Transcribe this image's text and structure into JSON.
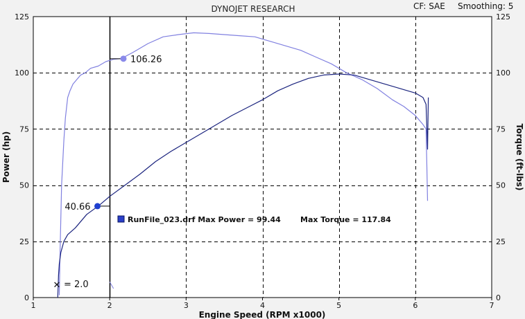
{
  "header": {
    "title": "DYNOJET RESEARCH",
    "correction_label": "CF: SAE",
    "smoothing_label": "Smoothing: 5"
  },
  "chart_data": {
    "type": "line",
    "xlabel": "Engine Speed (RPM x1000)",
    "ylabel": "Power (hp)",
    "y2label": "Torque (ft-lbs)",
    "xlim": [
      1,
      7
    ],
    "ylim": [
      0,
      125
    ],
    "y2lim": [
      0,
      125
    ],
    "xticks": [
      "1",
      "2",
      "3",
      "4",
      "5",
      "6",
      "7"
    ],
    "yticks": [
      "0",
      "25",
      "50",
      "75",
      "100",
      "125"
    ],
    "y2ticks": [
      "0",
      "25",
      "50",
      "75",
      "100",
      "125"
    ],
    "grid": true,
    "cursor_x": 2.0,
    "series": [
      {
        "key": "torque",
        "axis": "right",
        "color": "#8080e0",
        "x": [
          1.34,
          1.35,
          1.37,
          1.4,
          1.42,
          1.45,
          1.48,
          1.52,
          1.57,
          1.62,
          1.68,
          1.75,
          1.85,
          1.95,
          2.05,
          2.15,
          2.3,
          2.5,
          2.7,
          2.9,
          3.1,
          3.3,
          3.5,
          3.7,
          3.9,
          4.1,
          4.3,
          4.5,
          4.7,
          4.9,
          5.1,
          5.3,
          5.5,
          5.7,
          5.85,
          6.0,
          6.1,
          6.14,
          6.15,
          6.16
        ],
        "values": [
          1,
          20,
          50,
          70,
          80,
          89,
          92,
          95,
          97,
          99,
          100,
          102,
          103,
          105,
          106,
          106.3,
          109,
          113,
          116,
          117,
          117.8,
          117.5,
          117,
          116.5,
          116,
          114,
          112,
          110,
          107,
          104,
          100,
          97,
          93,
          88,
          85,
          81,
          77,
          75,
          60,
          43
        ]
      },
      {
        "key": "power",
        "axis": "left",
        "color": "#1a237e",
        "x": [
          1.32,
          1.33,
          1.34,
          1.36,
          1.4,
          1.45,
          1.55,
          1.7,
          1.85,
          2.0,
          2.2,
          2.4,
          2.6,
          2.8,
          3.0,
          3.2,
          3.4,
          3.6,
          3.8,
          4.0,
          4.2,
          4.4,
          4.6,
          4.8,
          5.0,
          5.2,
          5.4,
          5.6,
          5.8,
          6.0,
          6.1,
          6.14,
          6.16,
          6.17
        ],
        "values": [
          0,
          10,
          15,
          20,
          25,
          28,
          31,
          37,
          40.66,
          45,
          50,
          55,
          60.5,
          65,
          69,
          73,
          77,
          81,
          84.5,
          88,
          92,
          95,
          97.5,
          99,
          99.44,
          99,
          97,
          95,
          93,
          91,
          89,
          86,
          66,
          89
        ]
      }
    ],
    "markers": [
      {
        "series": "torque",
        "x": 2.18,
        "y": 106.26,
        "label": "106.26",
        "color": "#8a8aea"
      },
      {
        "series": "power",
        "x": 1.84,
        "y": 40.66,
        "label": "40.66",
        "color": "#1f3fcf"
      }
    ],
    "cursor_marker": {
      "x": 1.31,
      "y": 5.3,
      "label": "= 2.0"
    },
    "legend": {
      "entry": "RunFile_023.drf Max Power = 99.44",
      "extra": "Max Torque = 117.84",
      "position": "center"
    }
  }
}
